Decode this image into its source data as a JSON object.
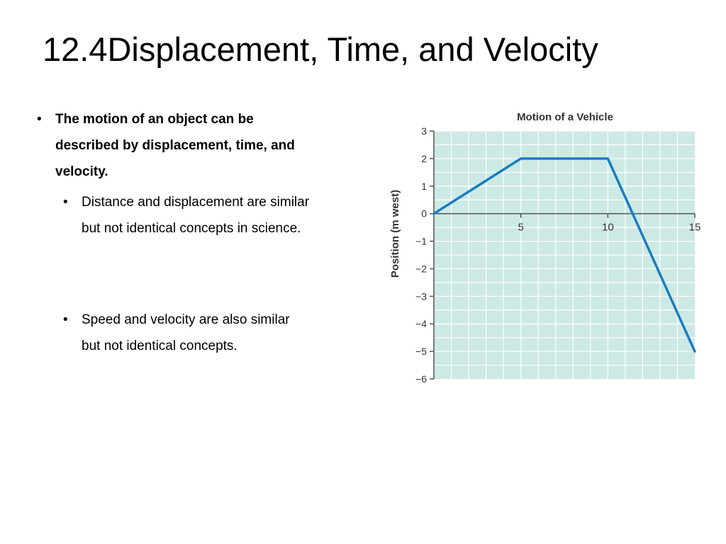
{
  "slide": {
    "title": "12.4Displacement, Time, and Velocity",
    "bullets": [
      {
        "level": 1,
        "lines": [
          "The motion of an object can be",
          "described by displacement, time, and",
          "velocity."
        ]
      },
      {
        "level": 2,
        "lines": [
          "Distance and displacement are similar",
          "but not identical concepts in science."
        ]
      },
      {
        "level": 2,
        "lines": [
          "Speed and velocity are also similar",
          "but not identical concepts."
        ]
      }
    ],
    "bullet_char": "•"
  },
  "chart_data": {
    "type": "line",
    "title": "Motion of a Vehicle",
    "xlabel": "",
    "ylabel": "Position (m west)",
    "xlim": [
      0,
      15
    ],
    "ylim": [
      -6,
      3
    ],
    "x_ticks": [
      5,
      10,
      15
    ],
    "y_ticks": [
      3,
      2,
      1,
      0,
      -1,
      -2,
      -3,
      -4,
      -5,
      -6
    ],
    "x_tick_labels": [
      "5",
      "10",
      "15"
    ],
    "y_tick_labels": [
      "3",
      "2",
      "1",
      "0",
      "−1",
      "−2",
      "−3",
      "−4",
      "−5",
      "−6"
    ],
    "grid": true,
    "x_minor_step": 1,
    "y_minor_step": 0.5,
    "series": [
      {
        "x": [
          0,
          5,
          10,
          15
        ],
        "y": [
          0,
          2,
          2,
          -5
        ]
      }
    ],
    "colors": {
      "line": "#1a7dc0",
      "plot_bg": "#cde9e5",
      "grid": "#ffffff",
      "axis": "#555555"
    }
  }
}
